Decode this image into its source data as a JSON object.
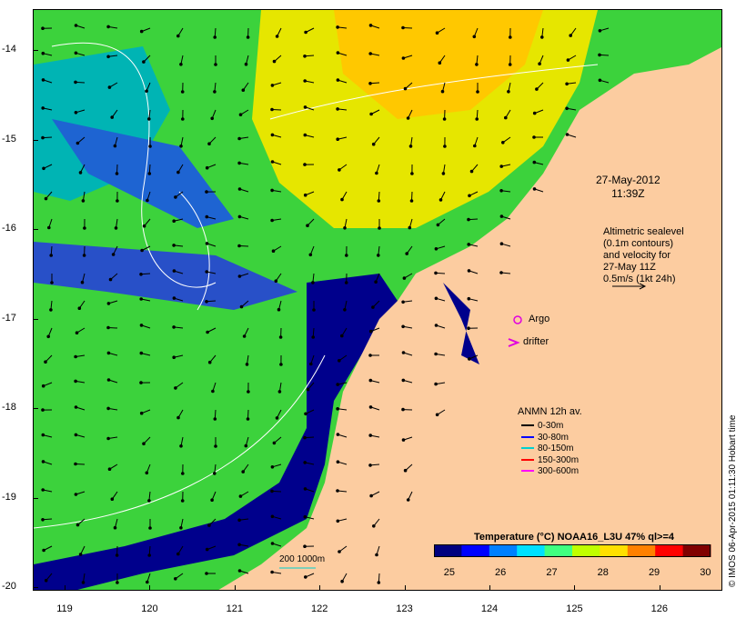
{
  "map": {
    "datetime": [
      "27-May-2012",
      "11:39Z"
    ],
    "altimetry_note": [
      "Altimetric sealevel",
      "(0.1m contours)",
      "and velocity for",
      "27-May 11Z",
      "0.5m/s (1kt 24h)"
    ],
    "markers": {
      "argo_label": "Argo",
      "drifter_label": "drifter",
      "argo_color": "#e000e0",
      "drifter_color": "#e000e0"
    },
    "depth_note": "200  1000m",
    "latitude_labels": [
      "-14",
      "-15",
      "-16",
      "-17",
      "-18",
      "-19",
      "-20"
    ],
    "longitude_labels": [
      "119",
      "120",
      "121",
      "122",
      "123",
      "124",
      "125",
      "126"
    ],
    "credit": "© IMOS 06-Apr-2015 01:11:30 Hobart time",
    "colors": {
      "land": "#fccca0",
      "deep_blue": "#00008c",
      "contour": "#ffffff",
      "vector": "#000000"
    }
  },
  "legend": {
    "title": "ANMN 12h av.",
    "items": [
      {
        "label": "0-30m",
        "color": "#000000"
      },
      {
        "label": "30-80m",
        "color": "#0000ff"
      },
      {
        "label": "80-150m",
        "color": "#00d0d0"
      },
      {
        "label": "150-300m",
        "color": "#ff0000"
      },
      {
        "label": "300-600m",
        "color": "#ff00ff"
      }
    ]
  },
  "colorbar": {
    "title": "Temperature (°C) NOAA16_L3U 47% ql>=4",
    "ticks": [
      "25",
      "26",
      "27",
      "28",
      "29",
      "30"
    ],
    "range": [
      24.7,
      30.1
    ],
    "colors": [
      "#00007f",
      "#0000ff",
      "#0080ff",
      "#00e0ff",
      "#40ff80",
      "#c0ff00",
      "#ffe000",
      "#ff8000",
      "#ff0000",
      "#800000"
    ]
  }
}
